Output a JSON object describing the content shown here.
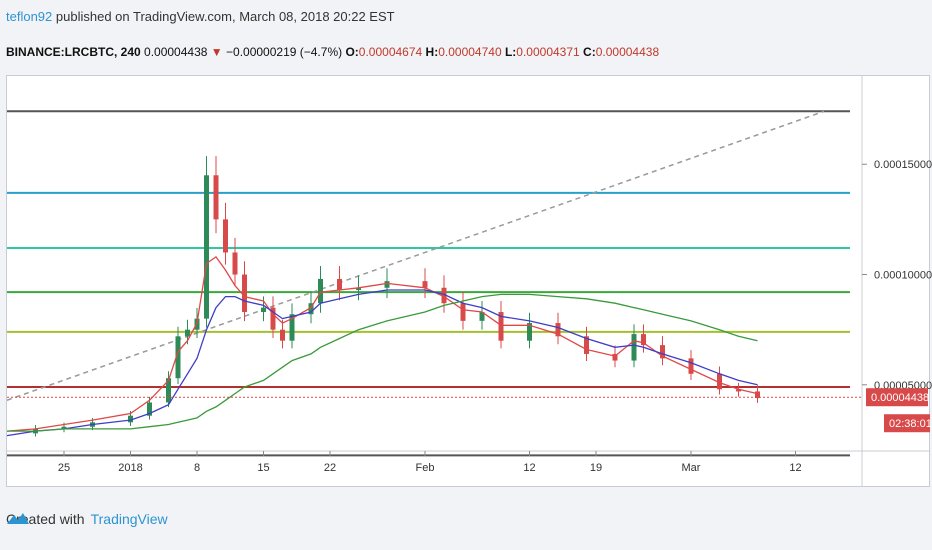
{
  "header": {
    "user": "teflon92",
    "published_text": "published on TradingView.com, March 08, 2018 20:22 EST",
    "symbol": "BINANCE:LRCBTC, 240",
    "last": "0.00004438",
    "change": "−0.00000219 (−4.7%)",
    "o_label": "O:",
    "o_value": "0.00004674",
    "h_label": "H:",
    "h_value": "0.00004740",
    "l_label": "L:",
    "l_value": "0.00004371",
    "c_label": "C:",
    "c_value": "0.00004438"
  },
  "footer": {
    "created_with": "Created with",
    "brand": "TradingView"
  },
  "colors": {
    "candle_up": "#2e8b57",
    "candle_down": "#d84a4a",
    "ema_fast": "#e04848",
    "ema_mid": "#3d3dc8",
    "ema_slow": "#3a9a3a",
    "price_tag": "#d84a4a"
  },
  "chart_data": {
    "type": "line",
    "ylim": [
      2e-05,
      0.00019
    ],
    "y_ticks": [
      "0.00015000",
      "0.00010000",
      "0.00005000"
    ],
    "y_tick_values": [
      0.00015,
      0.0001,
      5e-05
    ],
    "x_tick_labels": [
      "25",
      "2018",
      "8",
      "15",
      "22",
      "Feb",
      "12",
      "19",
      "Mar",
      "12"
    ],
    "x_tick_dates": [
      "2017-12-25",
      "2018-01-01",
      "2018-01-08",
      "2018-01-15",
      "2018-01-22",
      "2018-02-01",
      "2018-02-12",
      "2018-02-19",
      "2018-03-01",
      "2018-03-12"
    ],
    "last_price_label": "0.00004438",
    "last_price": 4.438e-05,
    "countdown": "02:38:01",
    "price_series": {
      "dates": [
        "2017-12-19",
        "2017-12-22",
        "2017-12-25",
        "2017-12-28",
        "2018-01-01",
        "2018-01-03",
        "2018-01-05",
        "2018-01-06",
        "2018-01-07",
        "2018-01-08",
        "2018-01-09",
        "2018-01-10",
        "2018-01-11",
        "2018-01-12",
        "2018-01-13",
        "2018-01-15",
        "2018-01-16",
        "2018-01-17",
        "2018-01-18",
        "2018-01-20",
        "2018-01-21",
        "2018-01-23",
        "2018-01-25",
        "2018-01-28",
        "2018-02-01",
        "2018-02-03",
        "2018-02-05",
        "2018-02-07",
        "2018-02-09",
        "2018-02-12",
        "2018-02-15",
        "2018-02-18",
        "2018-02-21",
        "2018-02-23",
        "2018-02-24",
        "2018-02-26",
        "2018-03-01",
        "2018-03-04",
        "2018-03-06",
        "2018-03-08"
      ],
      "values": [
        2.8e-05,
        3e-05,
        3.1e-05,
        3.3e-05,
        3.6e-05,
        4.2e-05,
        5.3e-05,
        7.2e-05,
        7.5e-05,
        8e-05,
        0.000145,
        0.000125,
        0.00011,
        0.0001,
        8.3e-05,
        8.5e-05,
        7.5e-05,
        7e-05,
        8.2e-05,
        8.7e-05,
        9.8e-05,
        9.3e-05,
        9.4e-05,
        9.7e-05,
        9.4e-05,
        8.7e-05,
        7.9e-05,
        8.3e-05,
        7e-05,
        7.8e-05,
        7.2e-05,
        6.4e-05,
        6.1e-05,
        7.3e-05,
        6.8e-05,
        6.2e-05,
        5.5e-05,
        4.8e-05,
        4.7e-05,
        4.4e-05
      ]
    },
    "series": [
      {
        "values": [
          2.9e-05,
          3e-05,
          3.2e-05,
          3.4e-05,
          3.7e-05,
          4.3e-05,
          5.2e-05,
          6.5e-05,
          7e-05,
          7.8e-05,
          0.000105,
          0.000108,
          0.000102,
          9.5e-05,
          9e-05,
          8.8e-05,
          8.2e-05,
          7.8e-05,
          8e-05,
          8.5e-05,
          9.2e-05,
          9.3e-05,
          9.4e-05,
          9.6e-05,
          9.4e-05,
          9e-05,
          8.4e-05,
          8.3e-05,
          7.7e-05,
          7.7e-05,
          7.3e-05,
          6.6e-05,
          6.3e-05,
          7e-05,
          6.9e-05,
          6.3e-05,
          5.7e-05,
          5.1e-05,
          4.8e-05,
          4.6e-05
        ]
      },
      {
        "values": [
          2.7e-05,
          2.9e-05,
          3e-05,
          3.2e-05,
          3.4e-05,
          3.7e-05,
          4.1e-05,
          4.8e-05,
          5.5e-05,
          6.2e-05,
          7.5e-05,
          8.5e-05,
          9e-05,
          9e-05,
          8.8e-05,
          8.6e-05,
          8.3e-05,
          8e-05,
          8.1e-05,
          8.3e-05,
          8.7e-05,
          8.9e-05,
          9.1e-05,
          9.3e-05,
          9.3e-05,
          9.1e-05,
          8.7e-05,
          8.5e-05,
          8.1e-05,
          7.9e-05,
          7.6e-05,
          7.1e-05,
          6.7e-05,
          6.8e-05,
          6.7e-05,
          6.4e-05,
          6e-05,
          5.5e-05,
          5.2e-05,
          5e-05
        ]
      },
      {
        "values": [
          2.9e-05,
          2.9e-05,
          3e-05,
          3e-05,
          3e-05,
          3.1e-05,
          3.2e-05,
          3.3e-05,
          3.4e-05,
          3.5e-05,
          3.8e-05,
          4e-05,
          4.3e-05,
          4.6e-05,
          4.9e-05,
          5.2e-05,
          5.5e-05,
          5.8e-05,
          6.1e-05,
          6.4e-05,
          6.7e-05,
          7.1e-05,
          7.5e-05,
          7.9e-05,
          8.3e-05,
          8.6e-05,
          8.8e-05,
          9e-05,
          9.1e-05,
          9.1e-05,
          9e-05,
          8.9e-05,
          8.7e-05,
          8.5e-05,
          8.4e-05,
          8.2e-05,
          7.9e-05,
          7.5e-05,
          7.2e-05,
          7e-05
        ]
      }
    ],
    "horizontal_lines": [
      {
        "value": 0.000174,
        "color": "#555555"
      },
      {
        "value": 0.000137,
        "color": "#2a9fc9"
      },
      {
        "value": 0.000112,
        "color": "#2fc7a0"
      },
      {
        "value": 9.2e-05,
        "color": "#3aa83a"
      },
      {
        "value": 7.4e-05,
        "color": "#a3c02c"
      },
      {
        "value": 4.9e-05,
        "color": "#b33030"
      },
      {
        "value": 1.8e-05,
        "color": "#555555"
      }
    ],
    "trend_line": {
      "from_date": "2017-12-19",
      "from_value": 4.3e-05,
      "to_date": "2018-03-15",
      "to_value": 0.000174
    }
  }
}
